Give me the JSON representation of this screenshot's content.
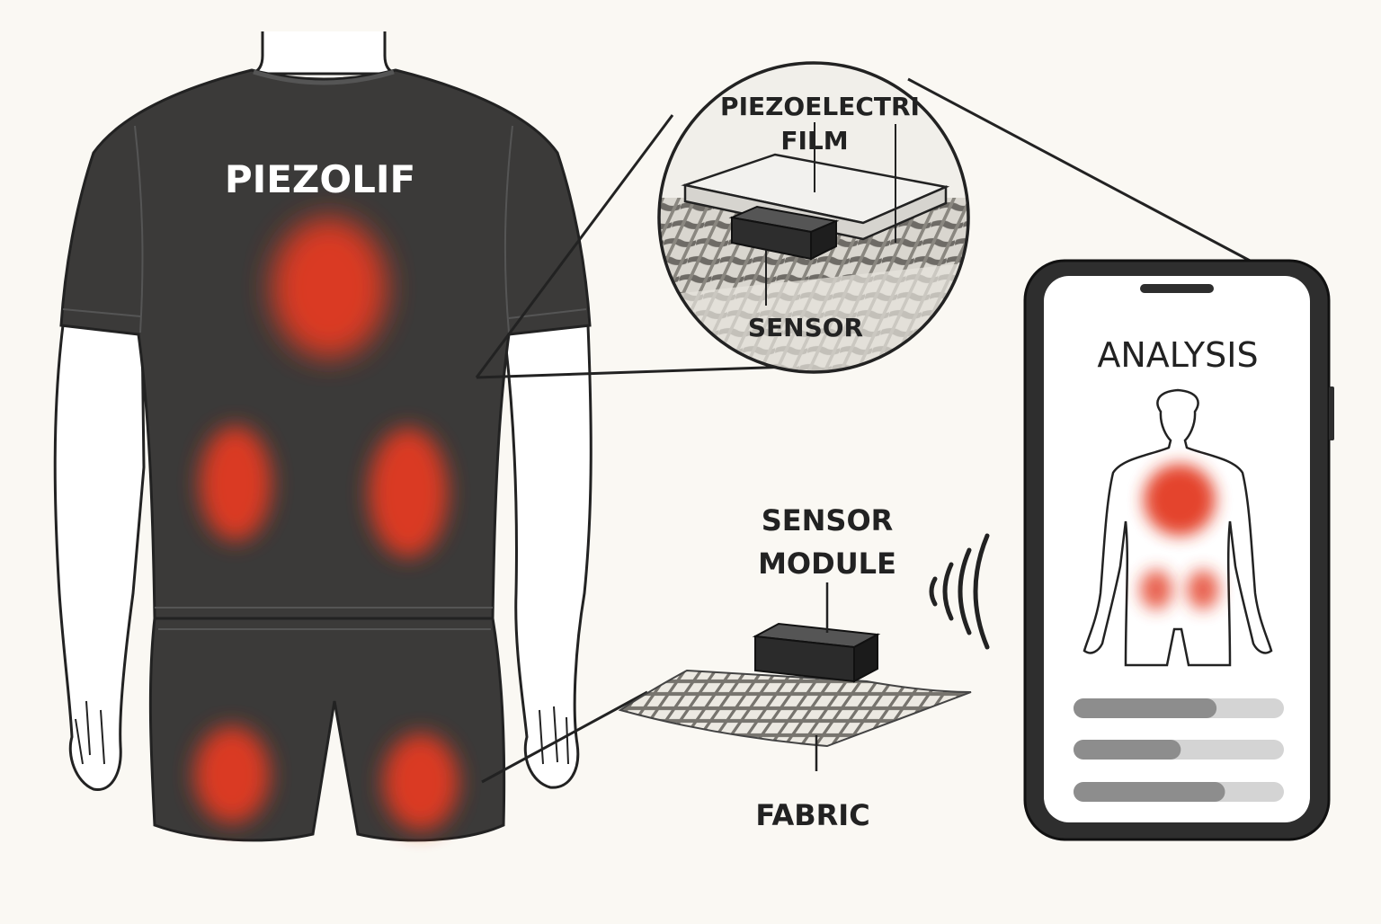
{
  "shirt": {
    "brand": "PIEZOLIF"
  },
  "zoom": {
    "film_label_line1": "PIEZOELECTRI",
    "film_label_line2": "FILM",
    "sensor_label": "SENSOR"
  },
  "module": {
    "label_line1": "SENSOR",
    "label_line2": "MODULE",
    "fabric_label": "FABRIC"
  },
  "phone": {
    "title": "ANALYSIS",
    "bars": [
      0.68,
      0.51,
      0.72
    ]
  },
  "colors": {
    "background": "#faf8f3",
    "garment": "#3b3a39",
    "hotspot": "#e33a22",
    "outline": "#222222",
    "bar_fill": "#8d8d8d",
    "bar_track": "#d4d4d4"
  },
  "icons": {
    "wireless": "wireless-signal-icon",
    "figure": "body-outline-icon"
  }
}
